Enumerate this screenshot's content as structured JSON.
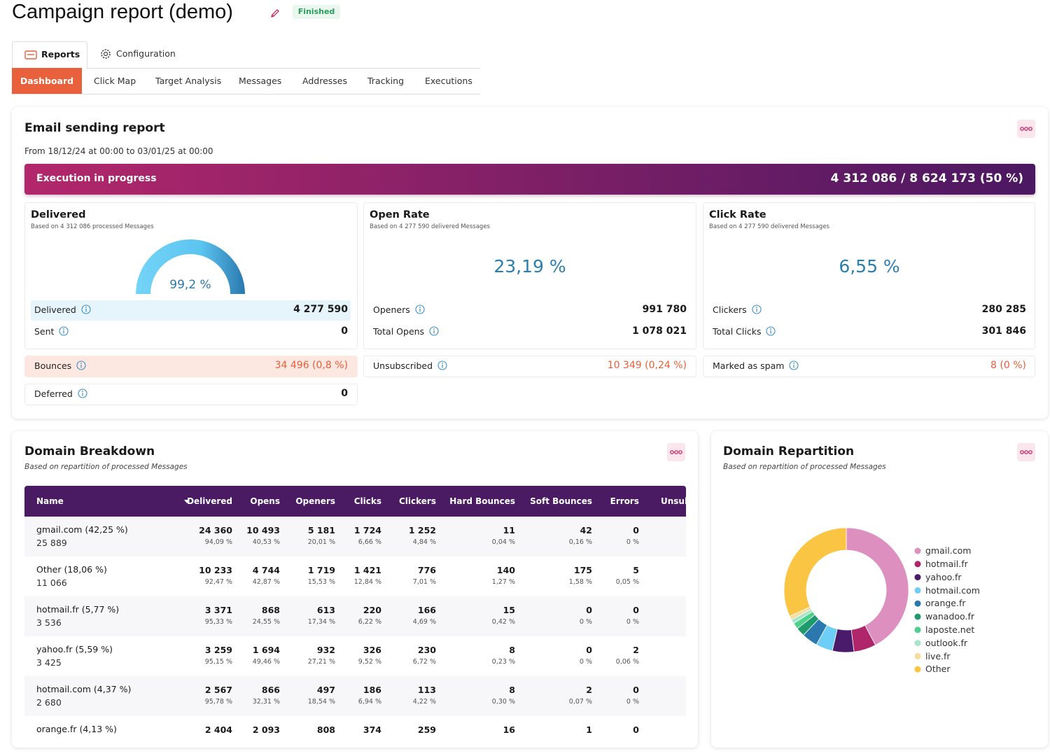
{
  "header": {
    "title": "Campaign report (demo)",
    "status": "Finished"
  },
  "tabs": [
    "Reports",
    "Configuration"
  ],
  "subtabs": [
    "Dashboard",
    "Click Map",
    "Target Analysis",
    "Messages",
    "Addresses",
    "Tracking",
    "Executions"
  ],
  "report": {
    "title": "Email sending report",
    "period": "From 18/12/24 at 00:00 to 03/01/25 at 00:00",
    "progress_label": "Execution in progress",
    "progress_value": "4 312 086 / 8 624 173 (50 %)",
    "cards": [
      {
        "title": "Delivered",
        "subtitle": "Based on 4 312 086 processed Messages",
        "value": "99,2 %",
        "rows": [
          {
            "label": "Delivered",
            "value": "4 277 590"
          },
          {
            "label": "Sent",
            "value": "0"
          }
        ]
      },
      {
        "title": "Open Rate",
        "subtitle": "Based on 4 277 590 delivered Messages",
        "value": "23,19 %",
        "rows": [
          {
            "label": "Openers",
            "value": "991 780"
          },
          {
            "label": "Total Opens",
            "value": "1 078 021"
          }
        ]
      },
      {
        "title": "Click Rate",
        "subtitle": "Based on 4 277 590 delivered Messages",
        "value": "6,55 %",
        "rows": [
          {
            "label": "Clickers",
            "value": "280 285"
          },
          {
            "label": "Total Clicks",
            "value": "301 846"
          }
        ]
      }
    ],
    "alerts": [
      {
        "label": "Bounces",
        "value": "34 496 (0,8 %)"
      },
      {
        "label": "Unsubscribed",
        "value": "10 349 (0,24 %)"
      },
      {
        "label": "Marked as spam",
        "value": "8 (0 %)"
      },
      {
        "label": "Deferred",
        "value": "0"
      }
    ]
  },
  "table": {
    "title": "Domain Breakdown",
    "subtitle": "Based on repartition of processed Messages",
    "columns": [
      "Name",
      "Delivered",
      "Opens",
      "Openers",
      "Clicks",
      "Clickers",
      "Hard Bounces",
      "Soft Bounces",
      "Errors",
      "Unsubscribed"
    ],
    "rows": [
      {
        "name": "gmail.com (42,25 %)",
        "total": "25 889",
        "cells": [
          [
            "24 360",
            "94,09 %"
          ],
          [
            "10 493",
            "40,53 %"
          ],
          [
            "5 181",
            "20,01 %"
          ],
          [
            "1 724",
            "6,66 %"
          ],
          [
            "1 252",
            "4,84 %"
          ],
          [
            "11",
            "0,04 %"
          ],
          [
            "42",
            "0,16 %"
          ],
          [
            "0",
            "0 %"
          ]
        ]
      },
      {
        "name": "Other (18,06 %)",
        "total": "11 066",
        "cells": [
          [
            "10 233",
            "92,47 %"
          ],
          [
            "4 744",
            "42,87 %"
          ],
          [
            "1 719",
            "15,53 %"
          ],
          [
            "1 421",
            "12,84 %"
          ],
          [
            "776",
            "7,01 %"
          ],
          [
            "140",
            "1,27 %"
          ],
          [
            "175",
            "1,58 %"
          ],
          [
            "5",
            "0,05 %"
          ]
        ]
      },
      {
        "name": "hotmail.fr (5,77 %)",
        "total": "3 536",
        "cells": [
          [
            "3 371",
            "95,33 %"
          ],
          [
            "868",
            "24,55 %"
          ],
          [
            "613",
            "17,34 %"
          ],
          [
            "220",
            "6,22 %"
          ],
          [
            "166",
            "4,69 %"
          ],
          [
            "15",
            "0,42 %"
          ],
          [
            "0",
            "0 %"
          ],
          [
            "0",
            "0 %"
          ]
        ]
      },
      {
        "name": "yahoo.fr (5,59 %)",
        "total": "3 425",
        "cells": [
          [
            "3 259",
            "95,15 %"
          ],
          [
            "1 694",
            "49,46 %"
          ],
          [
            "932",
            "27,21 %"
          ],
          [
            "326",
            "9,52 %"
          ],
          [
            "230",
            "6,72 %"
          ],
          [
            "8",
            "0,23 %"
          ],
          [
            "0",
            "0 %"
          ],
          [
            "2",
            "0,06 %"
          ]
        ]
      },
      {
        "name": "hotmail.com (4,37 %)",
        "total": "2 680",
        "cells": [
          [
            "2 567",
            "95,78 %"
          ],
          [
            "866",
            "32,31 %"
          ],
          [
            "497",
            "18,54 %"
          ],
          [
            "186",
            "6,94 %"
          ],
          [
            "113",
            "4,22 %"
          ],
          [
            "8",
            "0,30 %"
          ],
          [
            "2",
            "0,07 %"
          ],
          [
            "0",
            "0 %"
          ]
        ]
      },
      {
        "name": "orange.fr (4,13 %)",
        "cells": [
          [
            "2 404"
          ],
          [
            "2 093"
          ],
          [
            "808"
          ],
          [
            "374"
          ],
          [
            "259"
          ],
          [
            "16"
          ],
          [
            "1"
          ],
          [
            "0"
          ]
        ]
      }
    ]
  },
  "chart_data": {
    "type": "pie",
    "title": "Domain Repartition",
    "subtitle": "Based on repartition of processed Messages",
    "categories": [
      "gmail.com",
      "hotmail.fr",
      "yahoo.fr",
      "hotmail.com",
      "orange.fr",
      "wanadoo.fr",
      "laposte.net",
      "outlook.fr",
      "live.fr",
      "Other"
    ],
    "values": [
      42.25,
      5.77,
      5.59,
      4.37,
      4.13,
      2.3,
      1.6,
      1.1,
      1.0,
      31.89
    ],
    "colors": [
      "#dd8fc0",
      "#b0266a",
      "#4a1a6b",
      "#6ecff6",
      "#2a78ae",
      "#1f9a6c",
      "#4cd08a",
      "#a9e6c9",
      "#f6dd9c",
      "#fbc544"
    ],
    "donut": true
  }
}
